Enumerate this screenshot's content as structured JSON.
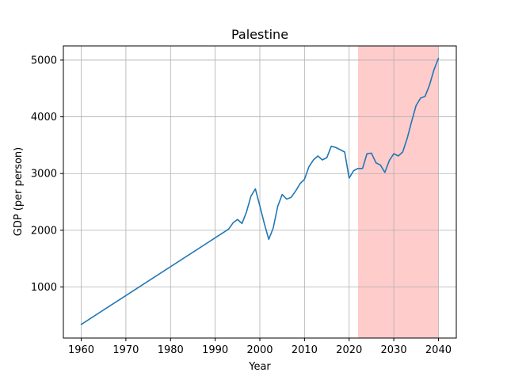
{
  "chart_data": {
    "type": "line",
    "title": "Palestine",
    "xlabel": "Year",
    "ylabel": "GDP (per person)",
    "xlim": [
      1956,
      2044
    ],
    "ylim": [
      100,
      5250
    ],
    "xticks": [
      1960,
      1970,
      1980,
      1990,
      2000,
      2010,
      2020,
      2030,
      2040
    ],
    "yticks": [
      1000,
      2000,
      3000,
      4000,
      5000
    ],
    "grid": true,
    "line_color": "#1f77b4",
    "highlight": {
      "x_start": 2022,
      "x_end": 2040,
      "color": "#ffcccc"
    },
    "series": [
      {
        "x": [
          1960,
          1993,
          1994,
          1995,
          1996,
          1997,
          1998,
          1999,
          2000,
          2001,
          2002,
          2003,
          2004,
          2005,
          2006,
          2007,
          2008,
          2009,
          2010,
          2011,
          2012,
          2013,
          2014,
          2015,
          2016,
          2017,
          2018,
          2019,
          2020,
          2021,
          2022,
          2023,
          2024,
          2025,
          2026,
          2027,
          2028,
          2029,
          2030,
          2031,
          2032,
          2033,
          2034,
          2035,
          2036,
          2037,
          2038,
          2039,
          2040
        ],
        "values": [
          340,
          2020,
          2130,
          2190,
          2120,
          2320,
          2600,
          2730,
          2430,
          2120,
          1840,
          2040,
          2420,
          2630,
          2550,
          2580,
          2690,
          2820,
          2900,
          3120,
          3240,
          3310,
          3240,
          3280,
          3480,
          3460,
          3420,
          3380,
          2920,
          3050,
          3090,
          3090,
          3350,
          3360,
          3190,
          3150,
          3020,
          3230,
          3350,
          3310,
          3380,
          3620,
          3920,
          4200,
          4330,
          4360,
          4560,
          4830,
          5030
        ]
      }
    ]
  }
}
